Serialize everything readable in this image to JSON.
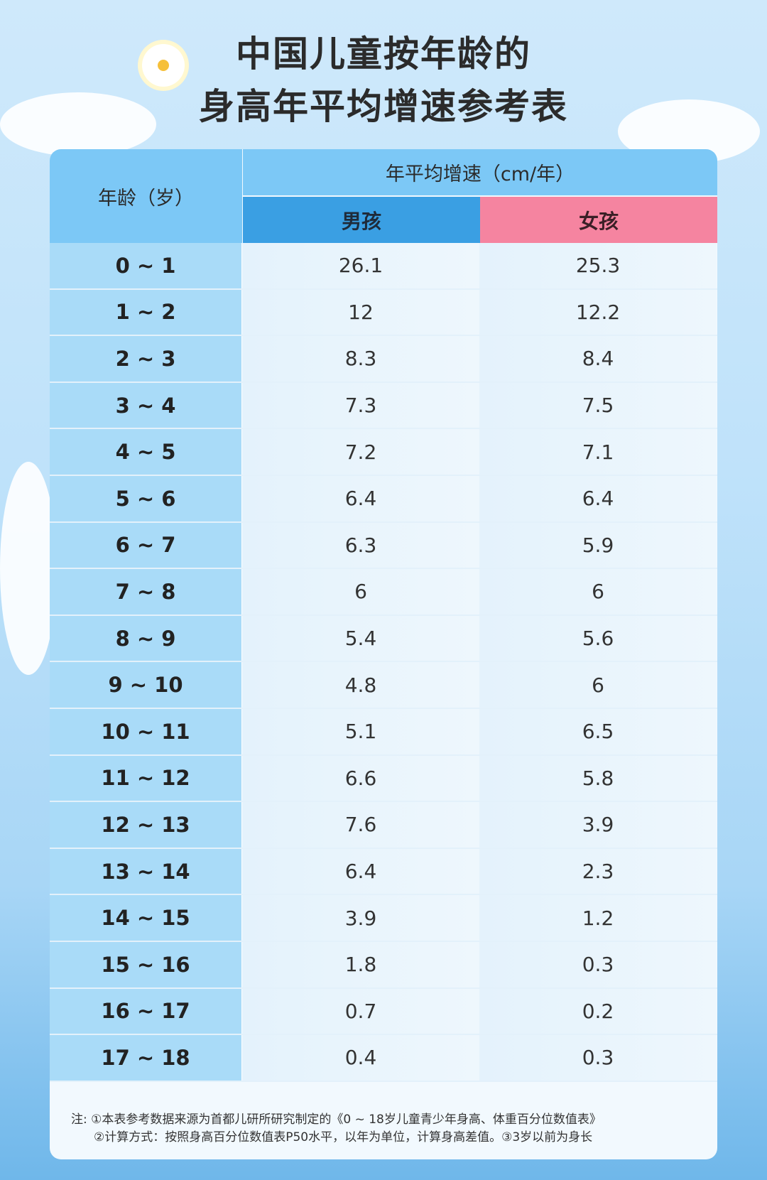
{
  "title": {
    "line1": "中国儿童按年龄的",
    "line2": "身高年平均增速参考表"
  },
  "table": {
    "age_header": "年龄（岁）",
    "speed_header": "年平均增速（cm/年）",
    "boy_header": "男孩",
    "girl_header": "女孩",
    "rows": [
      {
        "age": "0 ~ 1",
        "boy": "26.1",
        "girl": "25.3"
      },
      {
        "age": "1 ~ 2",
        "boy": "12",
        "girl": "12.2"
      },
      {
        "age": "2 ~ 3",
        "boy": "8.3",
        "girl": "8.4"
      },
      {
        "age": "3 ~ 4",
        "boy": "7.3",
        "girl": "7.5"
      },
      {
        "age": "4 ~ 5",
        "boy": "7.2",
        "girl": "7.1"
      },
      {
        "age": "5 ~ 6",
        "boy": "6.4",
        "girl": "6.4"
      },
      {
        "age": "6 ~ 7",
        "boy": "6.3",
        "girl": "5.9"
      },
      {
        "age": "7 ~ 8",
        "boy": "6",
        "girl": "6"
      },
      {
        "age": "8 ~ 9",
        "boy": "5.4",
        "girl": "5.6"
      },
      {
        "age": "9 ~ 10",
        "boy": "4.8",
        "girl": "6"
      },
      {
        "age": "10 ~ 11",
        "boy": "5.1",
        "girl": "6.5"
      },
      {
        "age": "11 ~ 12",
        "boy": "6.6",
        "girl": "5.8"
      },
      {
        "age": "12 ~ 13",
        "boy": "7.6",
        "girl": "3.9"
      },
      {
        "age": "13 ~ 14",
        "boy": "6.4",
        "girl": "2.3"
      },
      {
        "age": "14 ~ 15",
        "boy": "3.9",
        "girl": "1.2"
      },
      {
        "age": "15 ~ 16",
        "boy": "1.8",
        "girl": "0.3"
      },
      {
        "age": "16 ~ 17",
        "boy": "0.7",
        "girl": "0.2"
      },
      {
        "age": "17 ~ 18",
        "boy": "0.4",
        "girl": "0.3"
      }
    ]
  },
  "notes": {
    "line1": "注: ①本表参考数据来源为首都儿研所研究制定的《0 ~ 18岁儿童青少年身高、体重百分位数值表》",
    "line2": "②计算方式：按照身高百分位数值表P50水平，以年为单位，计算身高差值。③3岁以前为身长"
  },
  "colors": {
    "boy": "#3a9fe3",
    "girl": "#f584a0",
    "header": "#7cc8f6"
  }
}
